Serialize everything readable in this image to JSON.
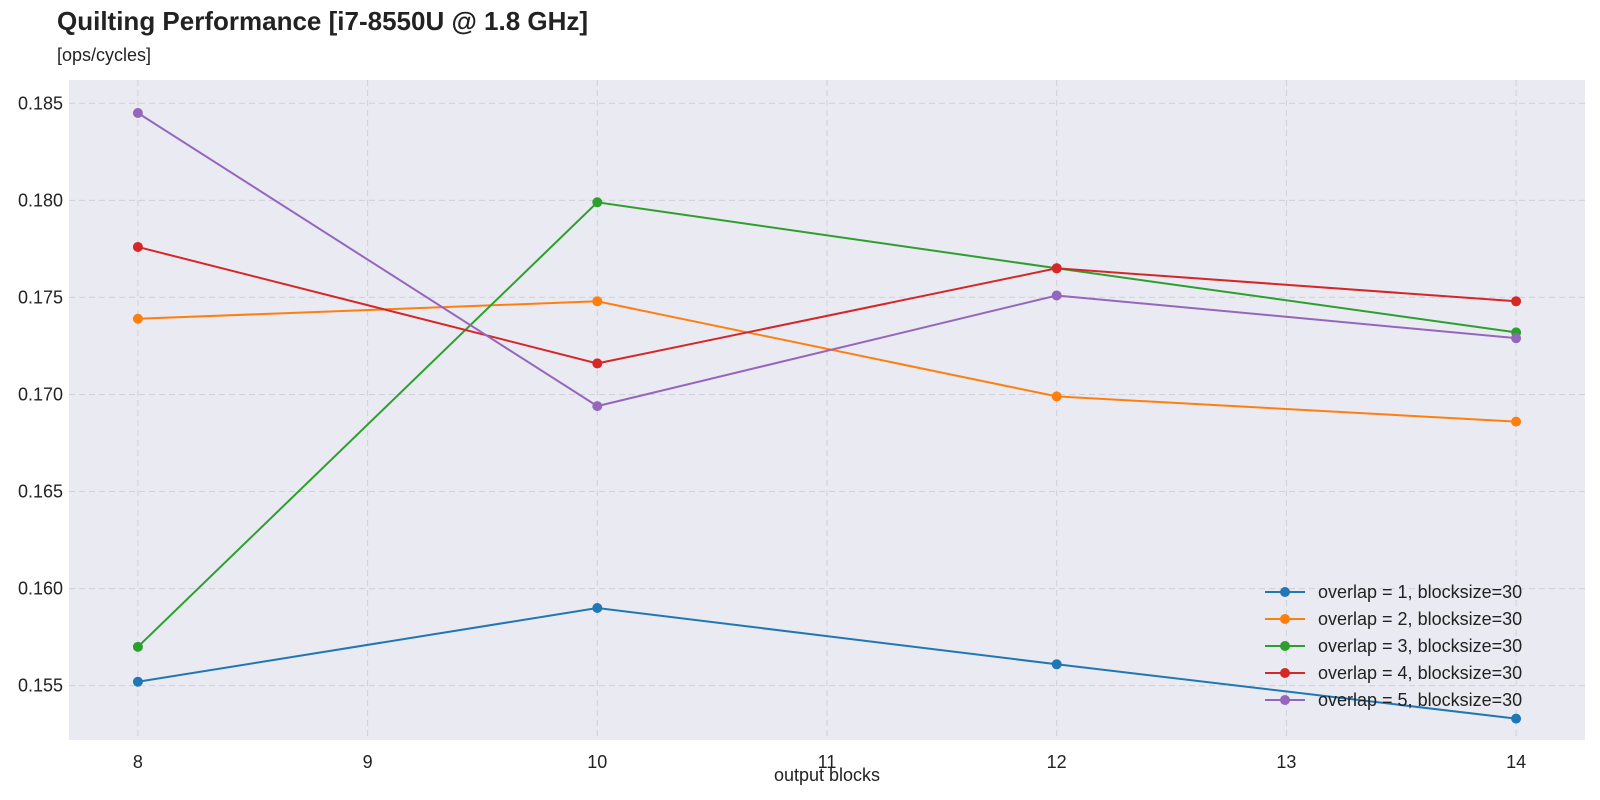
{
  "chart_data": {
    "type": "line",
    "title": "Quilting Performance [i7-8550U @ 1.8 GHz]",
    "subtitle": "[ops/cycles]",
    "xlabel": "output blocks",
    "ylabel": "",
    "xlim": [
      7.7,
      14.3
    ],
    "ylim": [
      0.1522,
      0.1862
    ],
    "xticks": [
      8,
      9,
      10,
      11,
      12,
      13,
      14
    ],
    "yticks": [
      0.155,
      0.16,
      0.165,
      0.17,
      0.175,
      0.18,
      0.185
    ],
    "ytick_labels": [
      "0.155",
      "0.160",
      "0.165",
      "0.170",
      "0.175",
      "0.180",
      "0.185"
    ],
    "grid": true,
    "legend_position": "lower-right",
    "x": [
      8,
      10,
      12,
      14
    ],
    "series": [
      {
        "name": "overlap = 1, blocksize=30",
        "color": "#1f77b4",
        "values": [
          0.1552,
          0.159,
          0.1561,
          0.1533
        ]
      },
      {
        "name": "overlap = 2, blocksize=30",
        "color": "#ff7f0e",
        "values": [
          0.1739,
          0.1748,
          0.1699,
          0.1686
        ]
      },
      {
        "name": "overlap = 3, blocksize=30",
        "color": "#2ca02c",
        "values": [
          0.157,
          0.1799,
          0.1765,
          0.1732
        ]
      },
      {
        "name": "overlap = 4, blocksize=30",
        "color": "#d62728",
        "values": [
          0.1776,
          0.1716,
          0.1765,
          0.1748
        ]
      },
      {
        "name": "overlap = 5, blocksize=30",
        "color": "#9467bd",
        "values": [
          0.1845,
          0.1694,
          0.1751,
          0.1729
        ]
      }
    ],
    "colors": {
      "plot_background": "#eaeaf2",
      "grid": "#d0d0d8"
    }
  }
}
